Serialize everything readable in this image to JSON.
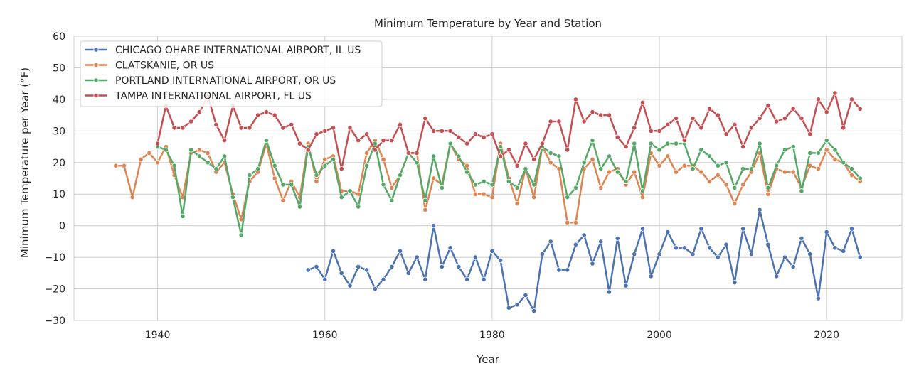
{
  "chart_data": {
    "type": "line",
    "title": "Minimum Temperature by Year and Station",
    "xlabel": "Year",
    "ylabel": "Minimum Temperature per Year (°F)",
    "xlim": [
      1930,
      2029
    ],
    "ylim": [
      -30,
      60
    ],
    "xticks": [
      1940,
      1960,
      1980,
      2000,
      2020
    ],
    "yticks": [
      -30,
      -20,
      -10,
      0,
      10,
      20,
      30,
      40,
      50,
      60
    ],
    "grid": true,
    "legend_position": "top-left",
    "series": [
      {
        "name": "CHICAGO OHARE INTERNATIONAL AIRPORT, IL US",
        "color": "#4c72b0",
        "x": [
          1958,
          1959,
          1960,
          1961,
          1962,
          1963,
          1964,
          1965,
          1966,
          1967,
          1968,
          1969,
          1970,
          1971,
          1972,
          1973,
          1974,
          1975,
          1976,
          1977,
          1978,
          1979,
          1980,
          1981,
          1982,
          1983,
          1984,
          1985,
          1986,
          1987,
          1988,
          1989,
          1990,
          1991,
          1992,
          1993,
          1994,
          1995,
          1996,
          1997,
          1998,
          1999,
          2000,
          2001,
          2002,
          2003,
          2004,
          2005,
          2006,
          2007,
          2008,
          2009,
          2010,
          2011,
          2012,
          2013,
          2014,
          2015,
          2016,
          2017,
          2018,
          2019,
          2020,
          2021,
          2022,
          2023,
          2024
        ],
        "values": [
          -14,
          -13,
          -17,
          -8,
          -15,
          -19,
          -13,
          -14,
          -20,
          -17,
          -13,
          -8,
          -15,
          -10,
          -17,
          0,
          -13,
          -7,
          -13,
          -17,
          -10,
          -17,
          -8,
          -11,
          -26,
          -25,
          -22,
          -27,
          -9,
          -5,
          -14,
          -14,
          -6,
          -3,
          -12,
          -5,
          -21,
          -4,
          -19,
          -9,
          -1,
          -16,
          -9,
          -2,
          -7,
          -7,
          -9,
          -1,
          -7,
          -10,
          -6,
          -18,
          -1,
          -9,
          5,
          -6,
          -16,
          -10,
          -13,
          -4,
          -9,
          -23,
          -2,
          -7,
          -8,
          -1,
          -10
        ]
      },
      {
        "name": "CLATSKANIE, OR US",
        "color": "#dd8452",
        "x": [
          1935,
          1936,
          1937,
          1938,
          1939,
          1940,
          1941,
          1942,
          1943,
          1944,
          1945,
          1946,
          1947,
          1948,
          1949,
          1950,
          1951,
          1952,
          1953,
          1954,
          1955,
          1956,
          1957,
          1958,
          1959,
          1960,
          1961,
          1962,
          1963,
          1964,
          1965,
          1966,
          1967,
          1968,
          1969,
          1970,
          1971,
          1972,
          1973,
          1974,
          1975,
          1976,
          1977,
          1978,
          1979,
          1980,
          1981,
          1982,
          1983,
          1984,
          1985,
          1986,
          1987,
          1988,
          1989,
          1990,
          1991,
          1992,
          1993,
          1994,
          1995,
          1996,
          1997,
          1998,
          1999,
          2000,
          2001,
          2002,
          2003,
          2004,
          2005,
          2006,
          2007,
          2008,
          2009,
          2010,
          2011,
          2012,
          2013,
          2014,
          2015,
          2016,
          2017,
          2018,
          2019,
          2020,
          2021,
          2022,
          2023,
          2024
        ],
        "values": [
          19,
          19,
          9,
          21,
          23,
          20,
          25,
          16,
          9,
          23,
          24,
          23,
          17,
          20,
          10,
          2,
          14,
          17,
          26,
          15,
          8,
          14,
          9,
          26,
          14,
          21,
          22,
          11,
          11,
          10,
          23,
          27,
          21,
          12,
          16,
          23,
          23,
          5,
          15,
          13,
          26,
          21,
          19,
          10,
          10,
          9,
          26,
          15,
          7,
          18,
          9,
          25,
          20,
          18,
          1,
          1,
          18,
          21,
          12,
          17,
          18,
          13,
          17,
          9,
          23,
          19,
          22,
          17,
          19,
          19,
          17,
          14,
          16,
          13,
          7,
          13,
          17,
          23,
          10,
          18,
          17,
          17,
          12,
          19,
          18,
          24,
          21,
          20,
          16,
          14
        ]
      },
      {
        "name": "PORTLAND INTERNATIONAL AIRPORT, OR US",
        "color": "#55a868",
        "x": [
          1940,
          1941,
          1942,
          1943,
          1944,
          1945,
          1946,
          1947,
          1948,
          1949,
          1950,
          1951,
          1952,
          1953,
          1954,
          1955,
          1956,
          1957,
          1958,
          1959,
          1960,
          1961,
          1962,
          1963,
          1964,
          1965,
          1966,
          1967,
          1968,
          1969,
          1970,
          1971,
          1972,
          1973,
          1974,
          1975,
          1976,
          1977,
          1978,
          1979,
          1980,
          1981,
          1982,
          1983,
          1984,
          1985,
          1986,
          1987,
          1988,
          1989,
          1990,
          1991,
          1992,
          1993,
          1994,
          1995,
          1996,
          1997,
          1998,
          1999,
          2000,
          2001,
          2002,
          2003,
          2004,
          2005,
          2006,
          2007,
          2008,
          2009,
          2010,
          2011,
          2012,
          2013,
          2014,
          2015,
          2016,
          2017,
          2018,
          2019,
          2020,
          2021,
          2022,
          2023,
          2024
        ],
        "values": [
          25,
          24,
          19,
          3,
          24,
          22,
          20,
          18,
          22,
          9,
          -3,
          16,
          18,
          27,
          19,
          13,
          13,
          6,
          25,
          16,
          19,
          21,
          9,
          11,
          6,
          19,
          26,
          13,
          8,
          16,
          23,
          20,
          8,
          22,
          12,
          26,
          22,
          17,
          13,
          14,
          13,
          25,
          14,
          12,
          18,
          13,
          25,
          23,
          22,
          9,
          12,
          20,
          27,
          18,
          22,
          17,
          14,
          26,
          11,
          26,
          24,
          26,
          26,
          26,
          18,
          24,
          22,
          19,
          20,
          12,
          18,
          18,
          26,
          12,
          19,
          24,
          25,
          11,
          23,
          23,
          27,
          24,
          20,
          18,
          15
        ]
      },
      {
        "name": "TAMPA INTERNATIONAL AIRPORT, FL US",
        "color": "#c44e52",
        "x": [
          1940,
          1941,
          1942,
          1943,
          1944,
          1945,
          1946,
          1947,
          1948,
          1949,
          1950,
          1951,
          1952,
          1953,
          1954,
          1955,
          1956,
          1957,
          1958,
          1959,
          1960,
          1961,
          1962,
          1963,
          1964,
          1965,
          1966,
          1967,
          1968,
          1969,
          1970,
          1971,
          1972,
          1973,
          1974,
          1975,
          1976,
          1977,
          1978,
          1979,
          1980,
          1981,
          1982,
          1983,
          1984,
          1985,
          1986,
          1987,
          1988,
          1989,
          1990,
          1991,
          1992,
          1993,
          1994,
          1995,
          1996,
          1997,
          1998,
          1999,
          2000,
          2001,
          2002,
          2003,
          2004,
          2005,
          2006,
          2007,
          2008,
          2009,
          2010,
          2011,
          2012,
          2013,
          2014,
          2015,
          2016,
          2017,
          2018,
          2019,
          2020,
          2021,
          2022,
          2023,
          2024
        ],
        "values": [
          26,
          38,
          31,
          31,
          33,
          36,
          41,
          32,
          27,
          38,
          31,
          31,
          35,
          36,
          35,
          31,
          32,
          26,
          24,
          29,
          30,
          31,
          18,
          31,
          27,
          29,
          24,
          27,
          27,
          32,
          23,
          23,
          34,
          30,
          30,
          30,
          28,
          26,
          29,
          28,
          29,
          22,
          24,
          19,
          26,
          21,
          26,
          33,
          33,
          24,
          40,
          33,
          36,
          35,
          35,
          28,
          25,
          31,
          39,
          30,
          30,
          32,
          34,
          27,
          34,
          31,
          37,
          35,
          29,
          32,
          25,
          31,
          34,
          38,
          33,
          34,
          37,
          34,
          29,
          40,
          36,
          42,
          31,
          40,
          37
        ]
      }
    ]
  }
}
